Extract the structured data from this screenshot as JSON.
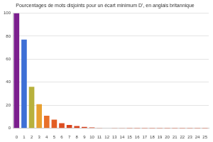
{
  "chart_data": {
    "type": "bar",
    "title": "Pourcentages de mots disjoints pour un écart minimum D', en anglais britannique",
    "categories": [
      "0",
      "1",
      "2",
      "3",
      "4",
      "5",
      "6",
      "7",
      "8",
      "9",
      "10",
      "11",
      "12",
      "13",
      "14",
      "15",
      "16",
      "17",
      "18",
      "19",
      "20",
      "21",
      "22",
      "23",
      "24",
      "25"
    ],
    "values": [
      100,
      77,
      36,
      21,
      11,
      7.5,
      4.5,
      3,
      2,
      1.2,
      0.8,
      0.5,
      0.3,
      0.2,
      0.15,
      0.1,
      0.08,
      0.06,
      0.05,
      0.04,
      0.03,
      0.03,
      0.02,
      0.02,
      0.01,
      0.01
    ],
    "colors": [
      "#7b1f8e",
      "#3d6fd6",
      "#b8b13c",
      "#e8a030",
      "#e8702a",
      "#e35e24",
      "#dd4e22",
      "#d9461f",
      "#d9441f",
      "#d9421f",
      "#d9421f",
      "#d9421f",
      "#d9421f",
      "#d9421f",
      "#d9421f",
      "#d9421f",
      "#d9421f",
      "#d9421f",
      "#d9421f",
      "#d9421f",
      "#d9421f",
      "#d9421f",
      "#d9421f",
      "#d9421f",
      "#d9421f",
      "#d9421f"
    ],
    "ylim": [
      0,
      100
    ],
    "yticks": [
      0,
      20,
      40,
      60,
      80,
      100
    ],
    "grid": true
  }
}
